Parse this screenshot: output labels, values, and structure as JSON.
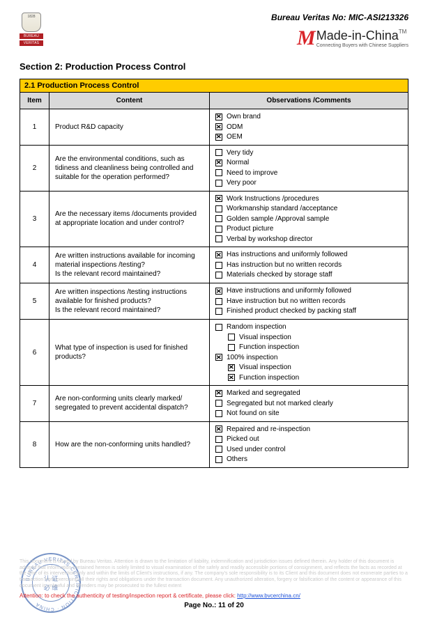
{
  "header": {
    "bv_no_label": "Bureau Veritas No: ",
    "bv_no_value": "MIC-ASI213326",
    "bv_logo_bar1": "BUREAU",
    "bv_logo_bar2": "VERITAS",
    "mic_main": "Made-in-China",
    "mic_tm": "TM",
    "mic_sub": "Connecting Buyers with Chinese Suppliers"
  },
  "section_title": "Section 2: Production Process Control",
  "table": {
    "banner": "2.1 Production Process Control",
    "columns": {
      "item": "Item",
      "content": "Content",
      "obs": "Observations /Comments"
    },
    "rows": [
      {
        "item": "1",
        "content": "Product R&D capacity",
        "options": [
          {
            "label": "Own brand",
            "checked": true,
            "indent": 0
          },
          {
            "label": "ODM",
            "checked": true,
            "indent": 0
          },
          {
            "label": "OEM",
            "checked": true,
            "indent": 0
          }
        ]
      },
      {
        "item": "2",
        "content": "Are the environmental conditions, such as tidiness and cleanliness being controlled and suitable for the operation performed?",
        "options": [
          {
            "label": "Very tidy",
            "checked": false,
            "indent": 0
          },
          {
            "label": "Normal",
            "checked": true,
            "indent": 0
          },
          {
            "label": "Need to improve",
            "checked": false,
            "indent": 0
          },
          {
            "label": "Very poor",
            "checked": false,
            "indent": 0
          }
        ]
      },
      {
        "item": "3",
        "content": "Are the necessary items /documents provided at appropriate location and under control?",
        "options": [
          {
            "label": "Work Instructions /procedures",
            "checked": true,
            "indent": 0
          },
          {
            "label": "Workmanship standard /acceptance",
            "checked": false,
            "indent": 0
          },
          {
            "label": "Golden sample /Approval sample",
            "checked": false,
            "indent": 0
          },
          {
            "label": "Product picture",
            "checked": false,
            "indent": 0
          },
          {
            "label": "Verbal by workshop director",
            "checked": false,
            "indent": 0
          }
        ]
      },
      {
        "item": "4",
        "content": "Are written instructions available for incoming material inspections /testing?\nIs the relevant record maintained?",
        "options": [
          {
            "label": "Has instructions and uniformly followed",
            "checked": true,
            "indent": 0
          },
          {
            "label": "Has instruction but no written records",
            "checked": false,
            "indent": 0
          },
          {
            "label": "Materials checked by storage staff",
            "checked": false,
            "indent": 0
          }
        ]
      },
      {
        "item": "5",
        "content": "Are written inspections /testing instructions available for finished products?\nIs the relevant record maintained?",
        "options": [
          {
            "label": "Have instructions and uniformly followed",
            "checked": true,
            "indent": 0
          },
          {
            "label": "Have instruction but no written records",
            "checked": false,
            "indent": 0
          },
          {
            "label": "Finished product checked by packing staff",
            "checked": false,
            "indent": 0
          }
        ]
      },
      {
        "item": "6",
        "content": "What type of inspection is used for finished products?",
        "options": [
          {
            "label": "Random inspection",
            "checked": false,
            "indent": 0
          },
          {
            "label": "Visual inspection",
            "checked": false,
            "indent": 1
          },
          {
            "label": "Function inspection",
            "checked": false,
            "indent": 1
          },
          {
            "label": "100% inspection",
            "checked": true,
            "indent": 0
          },
          {
            "label": "Visual inspection",
            "checked": true,
            "indent": 1
          },
          {
            "label": "Function inspection",
            "checked": true,
            "indent": 1
          }
        ]
      },
      {
        "item": "7",
        "content": "Are non-conforming units clearly marked/ segregated to prevent accidental dispatch?",
        "options": [
          {
            "label": "Marked and segregated",
            "checked": true,
            "indent": 0
          },
          {
            "label": "Segregated but not marked clearly",
            "checked": false,
            "indent": 0
          },
          {
            "label": "Not found on site",
            "checked": false,
            "indent": 0
          }
        ]
      },
      {
        "item": "8",
        "content": "How are the non-conforming units handled?",
        "options": [
          {
            "label": "Repaired and re-inspection",
            "checked": true,
            "indent": 0
          },
          {
            "label": "Picked out",
            "checked": false,
            "indent": 0
          },
          {
            "label": "Used under control",
            "checked": false,
            "indent": 0
          },
          {
            "label": "Others",
            "checked": false,
            "indent": 0
          }
        ]
      }
    ]
  },
  "footer": {
    "disclaimer": "This document is issued by Bureau Veritas. Attention is drawn to the limitation of liability, indemnification and jurisdiction issues defined therein. Any holder of this document is advised that information contained hereon is solely limited to visual examination of the safely and readily accessible portions of consignment, and reflects the facts as recorded at the time of its intervention only and within the limits of Client's instructions, if any. The company's sole responsibility is to its Client and this document does not exonerate parties to a transaction from exercising all their rights and obligations under the transaction document. Any unauthorized alteration, forgery or falsification of the content or appearance of this document is unlawful and offenders may be prosecuted to the fullest extent",
    "warn_prefix": "Attention: to check the authenticity of testing/inspection report & certificate, please click: ",
    "warn_link": "http://www.bvcerchina.cn/",
    "page_no": "Page No.: 11 of 20",
    "stamp_text": "BUREAU VERITAS CERTIFICATION · CHINA",
    "stamp_center": "认 证\n必 维"
  }
}
